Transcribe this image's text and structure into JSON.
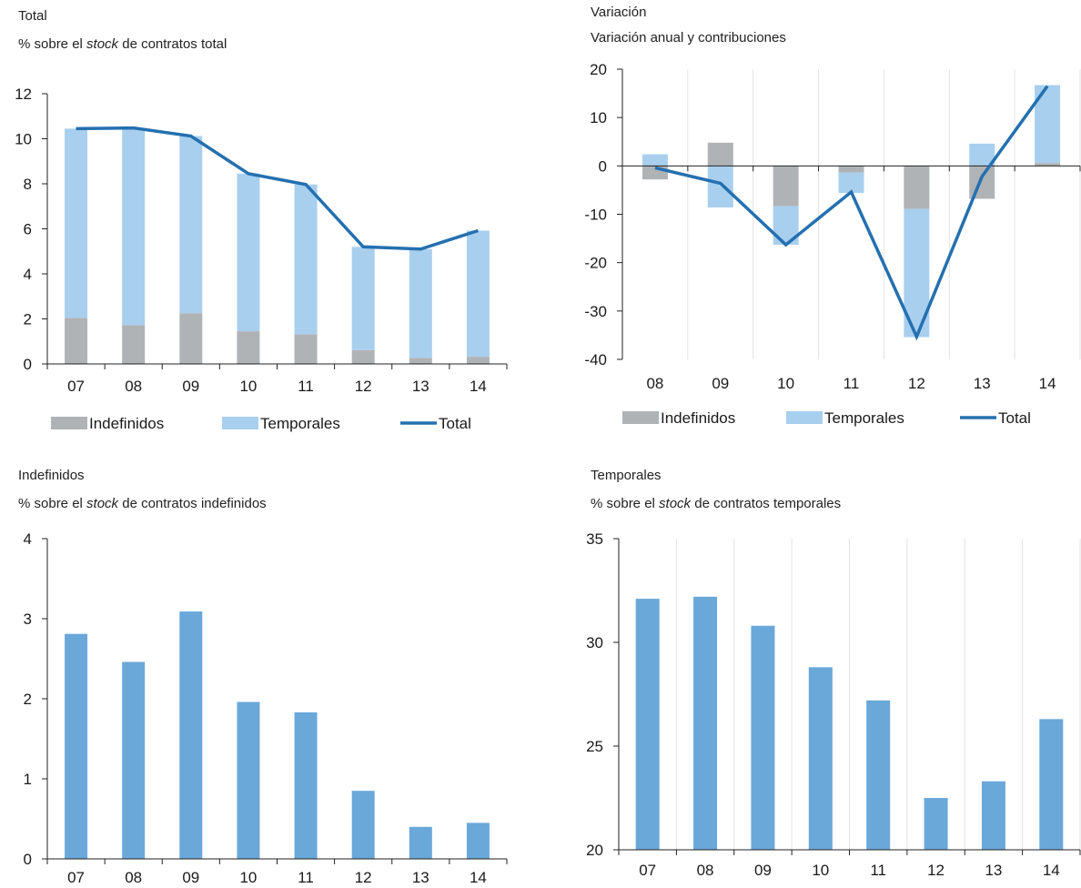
{
  "colors": {
    "indefinidos": "#b0b3b6",
    "temporales": "#a9cfee",
    "total_line": "#2470b0",
    "bar_single": "#6aa8da",
    "grid": "#e3e3e3",
    "axis": "#222222"
  },
  "panels": {
    "total": {
      "title": "Total",
      "sub_prefix": "% sobre el ",
      "sub_em": "stock",
      "sub_suffix": " de contratos total"
    },
    "variacion": {
      "title": "Variación",
      "sub": "Variación anual y contribuciones"
    },
    "indefinidos": {
      "title": "Indefinidos",
      "sub_prefix": "% sobre el ",
      "sub_em": "stock",
      "sub_suffix": " de contratos indefinidos"
    },
    "temporales": {
      "title": "Temporales",
      "sub_prefix": "% sobre el ",
      "sub_em": "stock",
      "sub_suffix": " de contratos temporales"
    }
  },
  "chart_data": [
    {
      "id": "total",
      "type": "bar",
      "stacked": true,
      "title": "Total",
      "subtitle": "% sobre el stock de contratos total",
      "categories": [
        "07",
        "08",
        "09",
        "10",
        "11",
        "12",
        "13",
        "14"
      ],
      "series": [
        {
          "name": "Indefinidos",
          "kind": "bar",
          "values": [
            2.05,
            1.72,
            2.25,
            1.45,
            1.32,
            0.62,
            0.27,
            0.32
          ]
        },
        {
          "name": "Temporales",
          "kind": "bar",
          "values": [
            8.4,
            8.76,
            7.87,
            7.0,
            6.65,
            4.58,
            4.83,
            5.6
          ]
        },
        {
          "name": "Total",
          "kind": "line",
          "values": [
            10.45,
            10.48,
            10.12,
            8.45,
            7.97,
            5.2,
            5.1,
            5.92
          ]
        }
      ],
      "ylim": [
        0,
        12
      ],
      "yticks": [
        0,
        2,
        4,
        6,
        8,
        10,
        12
      ],
      "legend": [
        "Indefinidos",
        "Temporales",
        "Total"
      ],
      "legend_position": "bottom"
    },
    {
      "id": "variacion",
      "type": "bar",
      "stacked": true,
      "title": "Variación",
      "subtitle": "Variación anual y contribuciones",
      "categories": [
        "08",
        "09",
        "10",
        "11",
        "12",
        "13",
        "14"
      ],
      "series": [
        {
          "name": "Indefinidos",
          "kind": "bar",
          "values": [
            -2.8,
            4.8,
            -8.3,
            -1.4,
            -8.9,
            -6.8,
            0.6
          ]
        },
        {
          "name": "Temporales",
          "kind": "bar",
          "values": [
            2.4,
            -8.6,
            -8.0,
            -4.2,
            -26.5,
            4.6,
            16.1
          ]
        },
        {
          "name": "Total",
          "kind": "line",
          "values": [
            -0.4,
            -3.6,
            -16.3,
            -5.4,
            -35.3,
            -2.2,
            16.5
          ]
        }
      ],
      "ylim": [
        -40,
        20
      ],
      "yticks": [
        -40,
        -30,
        -20,
        -10,
        0,
        10,
        20
      ],
      "grid": "vertical",
      "legend": [
        "Indefinidos",
        "Temporales",
        "Total"
      ],
      "legend_position": "bottom"
    },
    {
      "id": "indefinidos",
      "type": "bar",
      "title": "Indefinidos",
      "subtitle": "% sobre el stock de contratos indefinidos",
      "categories": [
        "07",
        "08",
        "09",
        "10",
        "11",
        "12",
        "13",
        "14"
      ],
      "values": [
        2.81,
        2.46,
        3.09,
        1.96,
        1.83,
        0.85,
        0.4,
        0.45
      ],
      "ylim": [
        0,
        4
      ],
      "yticks": [
        0,
        1,
        2,
        3,
        4
      ]
    },
    {
      "id": "temporales",
      "type": "bar",
      "title": "Temporales",
      "subtitle": "% sobre el stock de contratos temporales",
      "categories": [
        "07",
        "08",
        "09",
        "10",
        "11",
        "12",
        "13",
        "14"
      ],
      "values": [
        32.1,
        32.2,
        30.8,
        28.8,
        27.2,
        22.5,
        23.3,
        26.3
      ],
      "ylim": [
        20,
        35
      ],
      "yticks": [
        20,
        25,
        30,
        35
      ],
      "grid": "vertical"
    }
  ]
}
